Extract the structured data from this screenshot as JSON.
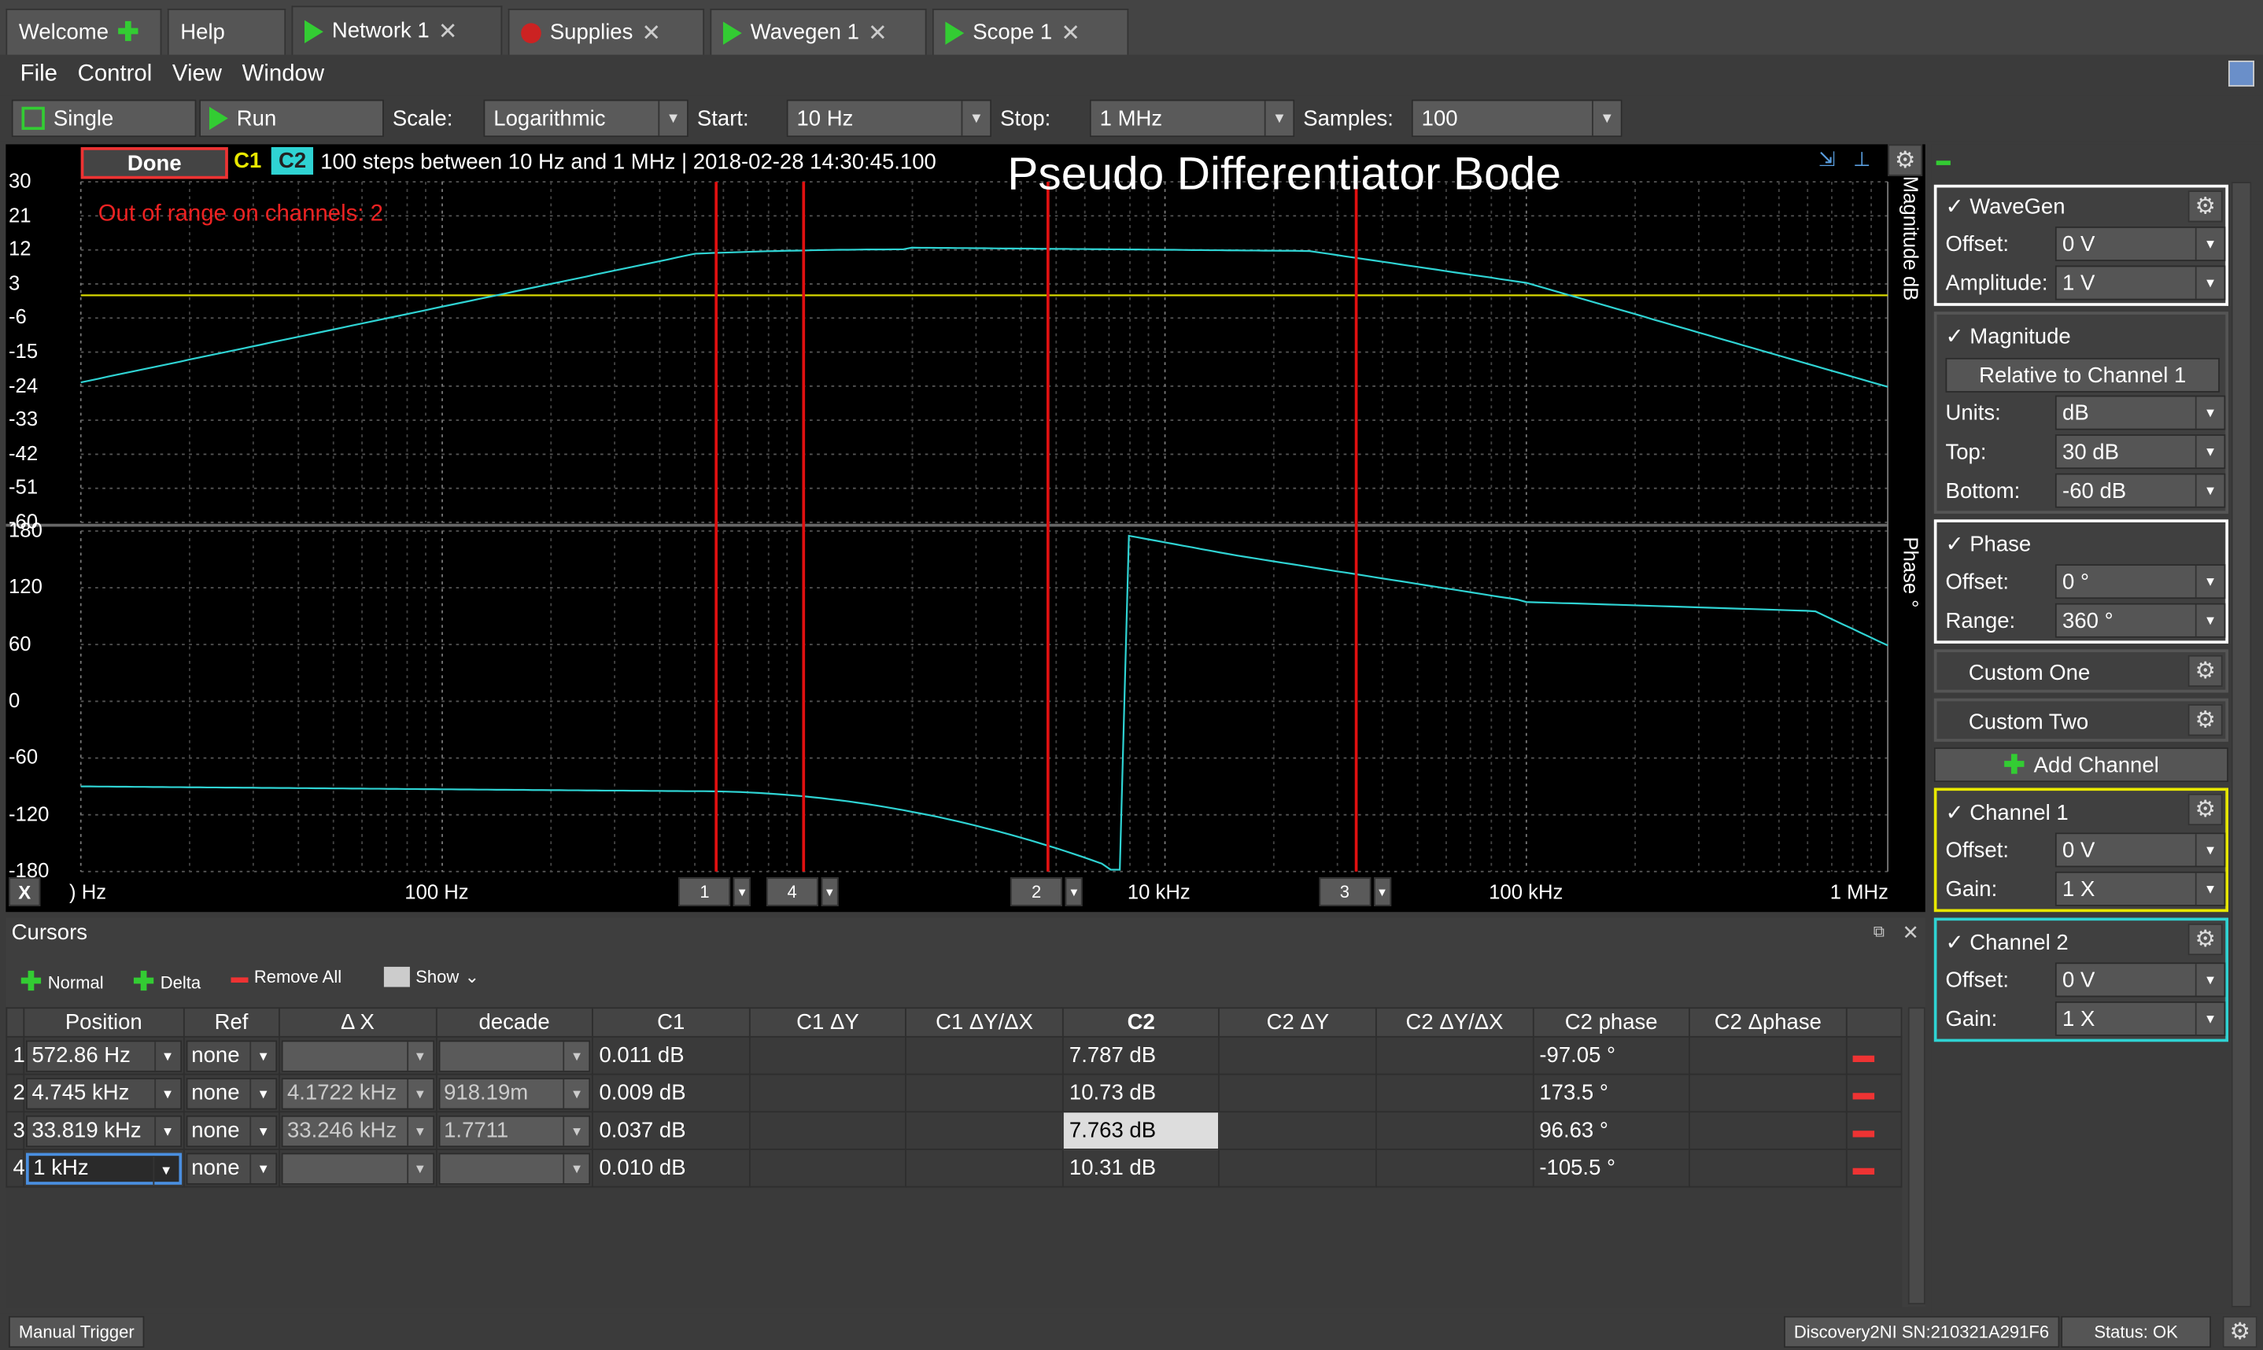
{
  "tabs": [
    {
      "label": "Welcome"
    },
    {
      "label": "Help"
    },
    {
      "label": "Network 1"
    },
    {
      "label": "Supplies"
    },
    {
      "label": "Wavegen 1"
    },
    {
      "label": "Scope 1"
    }
  ],
  "menu": [
    "File",
    "Control",
    "View",
    "Window"
  ],
  "toolbar": {
    "single": "Single",
    "run": "Run",
    "scale_label": "Scale:",
    "scale_value": "Logarithmic",
    "start_label": "Start:",
    "start_value": "10 Hz",
    "stop_label": "Stop:",
    "stop_value": "1 MHz",
    "samples_label": "Samples:",
    "samples_value": "100"
  },
  "plot": {
    "status": "Done",
    "c1": "C1",
    "c2": "C2",
    "info": "100 steps  between 10 Hz and 1 MHz | 2018-02-28 14:30:45.100",
    "title": "Pseudo Differentiator Bode",
    "warning": "Out of range on channels: 2",
    "mag_axis_title": "Magnitude dB",
    "phase_axis_title": "Phase °",
    "mag_ticks": [
      "30",
      "21",
      "12",
      "3",
      "-6",
      "-15",
      "-24",
      "-33",
      "-42",
      "-51",
      "-60"
    ],
    "phase_ticks": [
      "180",
      "120",
      "60",
      "0",
      "-60",
      "-120",
      "-180"
    ],
    "x_ticks": [
      ") Hz",
      "100 Hz",
      "10 kHz",
      "100 kHz",
      "1 MHz"
    ],
    "x_btn": "X",
    "cursor_labels": [
      "1",
      "4",
      "2",
      "3"
    ]
  },
  "chart_data": {
    "type": "line",
    "x_scale": "log",
    "xlim": [
      "10 Hz",
      "1 MHz"
    ],
    "mag_ylim": [
      -60,
      30
    ],
    "phase_ylim": [
      -180,
      180
    ],
    "series": [
      {
        "name": "C1",
        "color": "#d8d800",
        "magnitude_db": 0
      },
      {
        "name": "C2",
        "color": "#2fd3d3"
      }
    ],
    "cursors_hz": [
      572.86,
      4745,
      33819,
      1000
    ]
  },
  "cursors": {
    "title": "Cursors",
    "normal": "Normal",
    "delta": "Delta",
    "remove_all": "Remove All",
    "show": "Show",
    "headers": [
      "Position",
      "Ref",
      "Δ X",
      "decade",
      "C1",
      "C1 ΔY",
      "C1 ΔY/ΔX",
      "C2",
      "C2 ΔY",
      "C2 ΔY/ΔX",
      "C2 phase",
      "C2 Δphase"
    ],
    "rows": [
      {
        "n": "1",
        "pos": "572.86 Hz",
        "ref": "none",
        "dx": "",
        "dec": "",
        "c1": "0.011 dB",
        "c2": "7.787 dB",
        "ph": "-97.05 °"
      },
      {
        "n": "2",
        "pos": "4.745 kHz",
        "ref": "none",
        "dx": "4.1722 kHz",
        "dec": "918.19m",
        "c1": "0.009 dB",
        "c2": "10.73 dB",
        "ph": "173.5 °"
      },
      {
        "n": "3",
        "pos": "33.819 kHz",
        "ref": "none",
        "dx": "33.246 kHz",
        "dec": "1.7711",
        "c1": "0.037 dB",
        "c2": "7.763 dB",
        "ph": "96.63 °"
      },
      {
        "n": "4",
        "pos": "1 kHz",
        "ref": "none",
        "dx": "",
        "dec": "",
        "c1": "0.010 dB",
        "c2": "10.31 dB",
        "ph": "-105.5 °"
      }
    ]
  },
  "side": {
    "wavegen": "WaveGen",
    "offset": "Offset:",
    "offset_v": "0 V",
    "amplitude": "Amplitude:",
    "amplitude_v": "1 V",
    "magnitude": "Magnitude",
    "relative": "Relative to Channel 1",
    "units": "Units:",
    "units_v": "dB",
    "top": "Top:",
    "top_v": "30 dB",
    "bottom": "Bottom:",
    "bottom_v": "-60 dB",
    "phase": "Phase",
    "phase_offset_v": "0 °",
    "range": "Range:",
    "range_v": "360 °",
    "custom_one": "Custom One",
    "custom_two": "Custom Two",
    "add_channel": "Add Channel",
    "ch1": "Channel 1",
    "ch2": "Channel 2",
    "gain": "Gain:",
    "gain_v": "1 X"
  },
  "status": {
    "manual_trigger": "Manual Trigger",
    "device": "Discovery2NI SN:210321A291F6",
    "status": "Status: OK"
  }
}
